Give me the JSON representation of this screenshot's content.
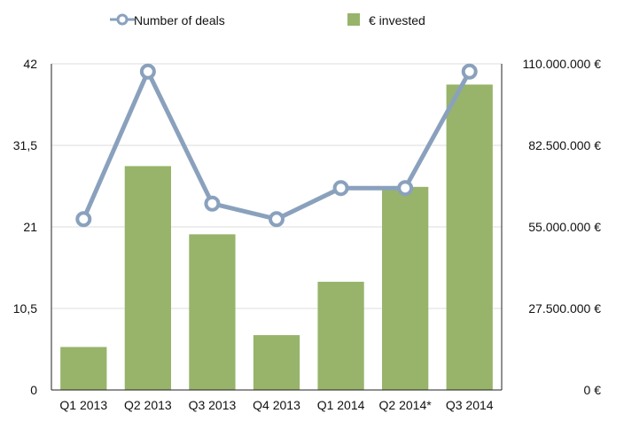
{
  "chart_data": {
    "type": "bar+line",
    "categories": [
      "Q1 2013",
      "Q2 2013",
      "Q3 2013",
      "Q4 2013",
      "Q1 2014",
      "Q2 2014*",
      "Q3 2014"
    ],
    "series": [
      {
        "name": "€ invested",
        "type": "bar",
        "axis": "right",
        "color": "#97b46a",
        "values": [
          14500000,
          75500000,
          52500000,
          18500000,
          36500000,
          68500000,
          103000000
        ]
      },
      {
        "name": "Number of deals",
        "type": "line",
        "axis": "left",
        "color": "#8aa1bd",
        "values": [
          22,
          41,
          24,
          22,
          26,
          26,
          41
        ]
      }
    ],
    "left_axis": {
      "ylim": [
        0,
        42
      ],
      "ticks": [
        "0",
        "10,5",
        "21",
        "31,5",
        "42"
      ]
    },
    "right_axis": {
      "ylim": [
        0,
        110000000
      ],
      "ticks": [
        "0 €",
        "27.500.000 €",
        "55.000.000 €",
        "82.500.000 €",
        "110.000.000 €"
      ]
    },
    "grid": true,
    "legend": "top"
  }
}
